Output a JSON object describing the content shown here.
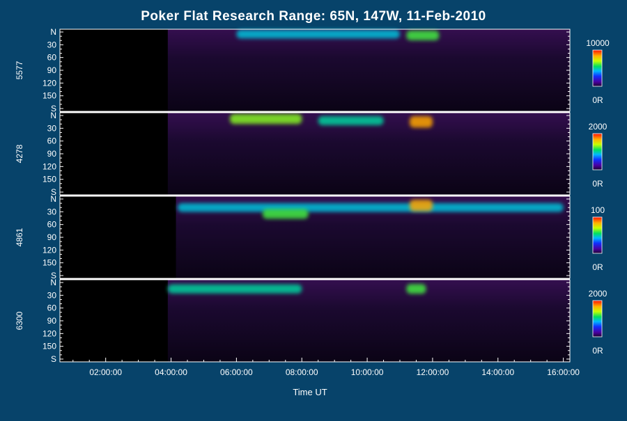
{
  "title": "Poker Flat Research Range: 65N, 147W, 11-Feb-2010",
  "xlabel": "Time UT",
  "x_ticks": [
    "02:00:00",
    "04:00:00",
    "06:00:00",
    "08:00:00",
    "10:00:00",
    "12:00:00",
    "14:00:00",
    "16:00:00"
  ],
  "y_ticks": [
    "N",
    "30",
    "60",
    "90",
    "120",
    "150",
    "S"
  ],
  "chart_data": {
    "type": "heatmap",
    "title": "Poker Flat Research Range: 65N, 147W, 11-Feb-2010",
    "xlabel": "Time UT",
    "x_unit": "UT hours",
    "xlim": [
      0.6,
      16.2
    ],
    "y_scale": "meridian angle (N to S)",
    "ylim": [
      0,
      180
    ],
    "data_start_hours": [
      3.9,
      3.9,
      4.15,
      3.9
    ],
    "panels": [
      {
        "ylabel": "5577",
        "colorbar": {
          "max_label": "10000",
          "min_label": "0R",
          "max": 10000,
          "min": 0
        },
        "features": [
          {
            "t_start": 6.0,
            "t_end": 11.0,
            "angle": 5,
            "intensity": 0.45
          },
          {
            "t_start": 11.2,
            "t_end": 12.2,
            "angle": 8,
            "intensity": 0.6
          }
        ]
      },
      {
        "ylabel": "4278",
        "colorbar": {
          "max_label": "2000",
          "min_label": "0R",
          "max": 2000,
          "min": 0
        },
        "features": [
          {
            "t_start": 5.8,
            "t_end": 8.0,
            "angle": 8,
            "intensity": 0.65
          },
          {
            "t_start": 8.5,
            "t_end": 10.5,
            "angle": 12,
            "intensity": 0.5
          },
          {
            "t_start": 11.3,
            "t_end": 12.0,
            "angle": 15,
            "intensity": 0.85
          }
        ]
      },
      {
        "ylabel": "4861",
        "colorbar": {
          "max_label": "100",
          "min_label": "0R",
          "max": 100,
          "min": 0
        },
        "features": [
          {
            "t_start": 4.2,
            "t_end": 16.0,
            "angle": 20,
            "intensity": 0.45
          },
          {
            "t_start": 6.8,
            "t_end": 8.2,
            "angle": 35,
            "intensity": 0.6
          },
          {
            "t_start": 11.3,
            "t_end": 12.0,
            "angle": 15,
            "intensity": 0.85
          }
        ]
      },
      {
        "ylabel": "6300",
        "colorbar": {
          "max_label": "2000",
          "min_label": "0R",
          "max": 2000,
          "min": 0
        },
        "features": [
          {
            "t_start": 3.9,
            "t_end": 8.0,
            "angle": 15,
            "intensity": 0.5
          },
          {
            "t_start": 11.2,
            "t_end": 11.8,
            "angle": 15,
            "intensity": 0.6
          }
        ]
      }
    ]
  },
  "colors": {
    "background": "#07436a",
    "plot_background": "#000000",
    "text": "#ffffff"
  }
}
